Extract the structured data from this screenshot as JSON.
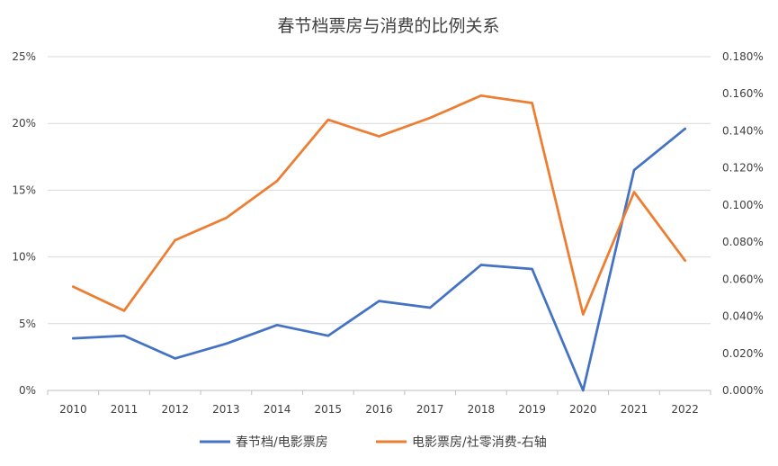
{
  "chart_data": {
    "type": "line",
    "title": "春节档票房与消费的比例关系",
    "categories": [
      "2010",
      "2011",
      "2012",
      "2013",
      "2014",
      "2015",
      "2016",
      "2017",
      "2018",
      "2019",
      "2020",
      "2021",
      "2022"
    ],
    "series": [
      {
        "name": "春节档/电影票房",
        "axis": "left",
        "color": "#4472C4",
        "values": [
          3.9,
          4.1,
          2.4,
          3.5,
          4.9,
          4.1,
          6.7,
          6.2,
          9.4,
          9.1,
          0.0,
          16.5,
          19.6
        ]
      },
      {
        "name": "电影票房/社零消费-右轴",
        "axis": "right",
        "color": "#ED7D31",
        "values": [
          0.056,
          0.043,
          0.081,
          0.093,
          0.113,
          0.146,
          0.137,
          0.147,
          0.159,
          0.155,
          0.041,
          0.107,
          0.07
        ]
      }
    ],
    "y_left": {
      "range": [
        0,
        25
      ],
      "ticks": [
        0,
        5,
        10,
        15,
        20,
        25
      ],
      "tick_labels": [
        "0%",
        "5%",
        "10%",
        "15%",
        "20%",
        "25%"
      ]
    },
    "y_right": {
      "range": [
        0,
        0.18
      ],
      "ticks": [
        0,
        0.02,
        0.04,
        0.06,
        0.08,
        0.1,
        0.12,
        0.14,
        0.16,
        0.18
      ],
      "tick_labels": [
        "0.000%",
        "0.020%",
        "0.040%",
        "0.060%",
        "0.080%",
        "0.100%",
        "0.120%",
        "0.140%",
        "0.160%",
        "0.180%"
      ]
    },
    "grid": true,
    "legend_position": "bottom",
    "gridline_color": "#D9D9D9"
  }
}
